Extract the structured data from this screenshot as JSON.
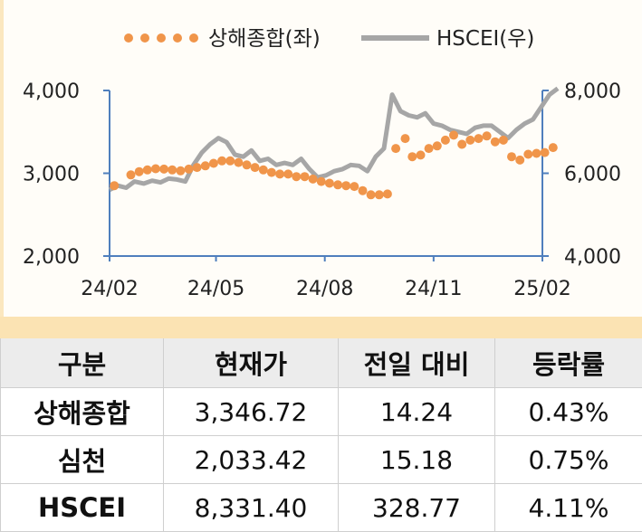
{
  "chart_data": {
    "type": "line",
    "legend": [
      {
        "name": "상해종합(좌)",
        "style": "dotted",
        "color": "#f0954a",
        "axis": "left"
      },
      {
        "name": "HSCEI(우)",
        "style": "line",
        "color": "#a6a6a6",
        "axis": "right"
      }
    ],
    "legend_position": "top",
    "x_ticks": [
      "24/02",
      "24/05",
      "24/08",
      "24/11",
      "25/02"
    ],
    "left_axis": {
      "range": [
        2000,
        4000
      ],
      "ticks": [
        "2,000",
        "3,000",
        "4,000"
      ]
    },
    "right_axis": {
      "range": [
        4000,
        8000
      ],
      "ticks": [
        "4,000",
        "6,000",
        "8,000"
      ]
    },
    "grid": false,
    "series": [
      {
        "name": "상해종합(좌)",
        "axis": "left",
        "x": [
          "24/02/05",
          "24/02/19",
          "24/02/26",
          "24/03/04",
          "24/03/11",
          "24/03/18",
          "24/03/25",
          "24/04/01",
          "24/04/08",
          "24/04/15",
          "24/04/22",
          "24/04/29",
          "24/05/06",
          "24/05/13",
          "24/05/20",
          "24/05/27",
          "24/06/03",
          "24/06/10",
          "24/06/17",
          "24/06/24",
          "24/07/01",
          "24/07/08",
          "24/07/15",
          "24/07/22",
          "24/07/29",
          "24/08/05",
          "24/08/12",
          "24/08/19",
          "24/08/26",
          "24/09/02",
          "24/09/09",
          "24/09/16",
          "24/09/23",
          "24/09/30",
          "24/10/08",
          "24/10/14",
          "24/10/21",
          "24/10/28",
          "24/11/04",
          "24/11/11",
          "24/11/18",
          "24/11/25",
          "24/12/02",
          "24/12/09",
          "24/12/16",
          "24/12/23",
          "24/12/30",
          "25/01/06",
          "25/01/13",
          "25/01/20",
          "25/01/27",
          "25/02/03",
          "25/02/10"
        ],
        "values": [
          2850,
          2980,
          3020,
          3040,
          3055,
          3050,
          3040,
          3030,
          3050,
          3070,
          3090,
          3120,
          3150,
          3150,
          3130,
          3100,
          3070,
          3040,
          3010,
          2990,
          2990,
          2960,
          2960,
          2930,
          2900,
          2880,
          2860,
          2850,
          2840,
          2790,
          2740,
          2740,
          2750,
          3300,
          3420,
          3200,
          3220,
          3300,
          3330,
          3400,
          3460,
          3350,
          3400,
          3420,
          3450,
          3380,
          3400,
          3200,
          3160,
          3230,
          3240,
          3250,
          3310
        ]
      },
      {
        "name": "HSCEI(우)",
        "axis": "right",
        "x": [
          "24/02/01",
          "24/02/08",
          "24/02/15",
          "24/02/22",
          "24/03/01",
          "24/03/08",
          "24/03/15",
          "24/03/22",
          "24/03/29",
          "24/04/05",
          "24/04/12",
          "24/04/19",
          "24/04/26",
          "24/05/03",
          "24/05/10",
          "24/05/17",
          "24/05/24",
          "24/05/31",
          "24/06/07",
          "24/06/14",
          "24/06/21",
          "24/06/28",
          "24/07/05",
          "24/07/12",
          "24/07/19",
          "24/07/26",
          "24/08/02",
          "24/08/09",
          "24/08/16",
          "24/08/23",
          "24/08/30",
          "24/09/06",
          "24/09/13",
          "24/09/20",
          "24/09/27",
          "24/10/04",
          "24/10/11",
          "24/10/18",
          "24/10/25",
          "24/11/01",
          "24/11/08",
          "24/11/15",
          "24/11/22",
          "24/11/29",
          "24/12/06",
          "24/12/13",
          "24/12/20",
          "24/12/27",
          "25/01/03",
          "25/01/10",
          "25/01/17",
          "25/01/24",
          "25/01/31",
          "25/02/07",
          "25/02/14"
        ],
        "values": [
          5600,
          5700,
          5650,
          5800,
          5750,
          5820,
          5780,
          5870,
          5850,
          5800,
          6200,
          6500,
          6700,
          6850,
          6750,
          6450,
          6400,
          6550,
          6300,
          6350,
          6200,
          6250,
          6200,
          6350,
          6100,
          5900,
          5950,
          6050,
          6100,
          6200,
          6180,
          6050,
          6400,
          6600,
          7900,
          7500,
          7400,
          7350,
          7450,
          7200,
          7150,
          7050,
          7000,
          6950,
          7100,
          7150,
          7150,
          7000,
          6850,
          7050,
          7200,
          7300,
          7600,
          7900,
          8050
        ]
      }
    ]
  },
  "table": {
    "headers": [
      "구분",
      "현재가",
      "전일 대비",
      "등락률"
    ],
    "rows": [
      [
        "상해종합",
        "3,346.72",
        "14.24",
        "0.43%"
      ],
      [
        "심천",
        "2,033.42",
        "15.18",
        "0.75%"
      ],
      [
        "HSCEI",
        "8,331.40",
        "328.77",
        "4.11%"
      ]
    ]
  }
}
